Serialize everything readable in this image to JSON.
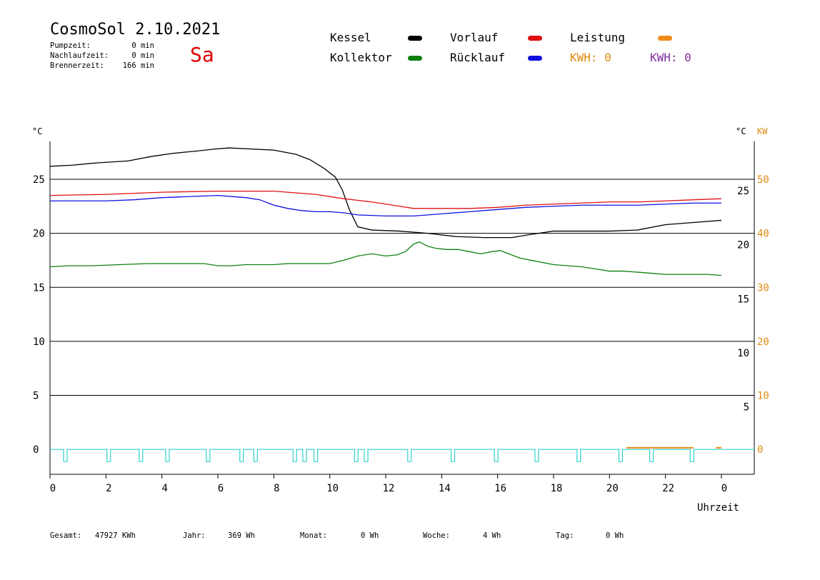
{
  "header": {
    "title": "CosmoSol 2.10.2021",
    "day": "Sa",
    "stats": [
      {
        "label": "Pumpzeit:",
        "value": "0 min"
      },
      {
        "label": "Nachlaufzeit:",
        "value": "0 min"
      },
      {
        "label": "Brennerzeit:",
        "value": "166 min"
      }
    ]
  },
  "legend": {
    "kessel": {
      "label": "Kessel",
      "color": "#000000"
    },
    "vorlauf": {
      "label": "Vorlauf",
      "color": "#e01010"
    },
    "leistung": {
      "label": "Leistung",
      "color": "#f08a1a"
    },
    "kollektor": {
      "label": "Kollektor",
      "color": "#108010"
    },
    "ruecklauf": {
      "label": "Rücklauf",
      "color": "#1010e0"
    },
    "kwh1": {
      "label": "KWH: 0",
      "color": "#e08a10"
    },
    "kwh2": {
      "label": "KWH: 0",
      "color": "#8030a0"
    }
  },
  "footer": [
    {
      "label": "Gesamt:",
      "value": "47927 KWh"
    },
    {
      "label": "Jahr:",
      "value": "369 Wh"
    },
    {
      "label": "Monat:",
      "value": "0 Wh"
    },
    {
      "label": "Woche:",
      "value": "4 Wh"
    },
    {
      "label": "Tag:",
      "value": "0 Wh"
    }
  ],
  "chart_data": {
    "type": "line",
    "xlabel": "Uhrzeit",
    "left_unit": "°C",
    "right_unit": "°C",
    "right_unit2": "KW",
    "x_ticks": [
      "0",
      "2",
      "4",
      "6",
      "8",
      "10",
      "12",
      "14",
      "16",
      "18",
      "20",
      "22",
      "0"
    ],
    "xlim": [
      0,
      24
    ],
    "ylim": [
      -2.3,
      28.5
    ],
    "y_ticks_left": [
      0,
      5,
      10,
      15,
      20,
      25
    ],
    "y_ticks_right_temp": [
      5,
      10,
      15,
      20,
      25
    ],
    "y_ticks_right_kw": [
      0,
      10,
      20,
      30,
      40,
      50
    ],
    "grid": "horizontal",
    "series": [
      {
        "name": "Kessel",
        "color": "#000000",
        "x": [
          0,
          0.8,
          1.6,
          2.8,
          3.6,
          4.4,
          5.2,
          5.9,
          6.4,
          7.2,
          8.0,
          8.8,
          9.3,
          9.8,
          10.2,
          10.45,
          10.7,
          11.0,
          11.5,
          12.5,
          13.5,
          14.5,
          15.5,
          16.5,
          17.2,
          18.0,
          19.0,
          20.0,
          21.0,
          22.0,
          23.0,
          24.0
        ],
        "y": [
          26.2,
          26.3,
          26.5,
          26.7,
          27.1,
          27.4,
          27.6,
          27.8,
          27.9,
          27.8,
          27.7,
          27.3,
          26.8,
          26.0,
          25.2,
          24.0,
          22.2,
          20.6,
          20.3,
          20.2,
          20.0,
          19.7,
          19.6,
          19.6,
          19.9,
          20.2,
          20.2,
          20.2,
          20.3,
          20.8,
          21.0,
          21.2
        ]
      },
      {
        "name": "Vorlauf",
        "color": "#e01010",
        "x": [
          0,
          2,
          4,
          6,
          8,
          9.5,
          10.5,
          11.5,
          12.5,
          13,
          14,
          15,
          16,
          17,
          18,
          19,
          20,
          21,
          22,
          23,
          24
        ],
        "y": [
          23.5,
          23.6,
          23.8,
          23.9,
          23.9,
          23.6,
          23.2,
          22.9,
          22.5,
          22.3,
          22.3,
          22.3,
          22.4,
          22.6,
          22.7,
          22.8,
          22.9,
          22.9,
          23.0,
          23.1,
          23.2
        ]
      },
      {
        "name": "Rücklauf",
        "color": "#1010e0",
        "x": [
          0,
          1,
          2,
          3,
          4,
          5,
          6,
          7,
          7.5,
          8,
          8.5,
          9,
          9.5,
          10,
          10.5,
          11,
          12,
          13,
          14,
          15,
          16,
          17,
          18,
          19,
          20,
          21,
          22,
          23,
          24
        ],
        "y": [
          23.0,
          23.0,
          23.0,
          23.1,
          23.3,
          23.4,
          23.5,
          23.3,
          23.1,
          22.6,
          22.3,
          22.1,
          22.0,
          22.0,
          21.9,
          21.7,
          21.6,
          21.6,
          21.8,
          22.0,
          22.2,
          22.4,
          22.5,
          22.6,
          22.6,
          22.6,
          22.7,
          22.8,
          22.8
        ]
      },
      {
        "name": "Kollektor",
        "color": "#108010",
        "x": [
          0,
          0.7,
          1.5,
          2.5,
          3.5,
          4.5,
          5.5,
          6.0,
          6.5,
          7.0,
          7.5,
          8.0,
          8.5,
          9.0,
          9.5,
          10.0,
          10.5,
          11.0,
          11.5,
          12.0,
          12.4,
          12.7,
          13.0,
          13.2,
          13.5,
          13.8,
          14.2,
          14.6,
          15.0,
          15.4,
          15.8,
          16.1,
          16.4,
          16.8,
          17.2,
          17.6,
          18.0,
          18.5,
          19.0,
          19.5,
          20.0,
          20.5,
          21.0,
          21.5,
          22.0,
          22.5,
          23.0,
          23.5,
          24.0
        ],
        "y": [
          16.9,
          17.0,
          17.0,
          17.1,
          17.2,
          17.2,
          17.2,
          17.0,
          17.0,
          17.1,
          17.1,
          17.1,
          17.2,
          17.2,
          17.2,
          17.2,
          17.5,
          17.9,
          18.1,
          17.9,
          18.0,
          18.3,
          19.0,
          19.2,
          18.8,
          18.6,
          18.5,
          18.5,
          18.3,
          18.1,
          18.3,
          18.4,
          18.1,
          17.7,
          17.5,
          17.3,
          17.1,
          17.0,
          16.9,
          16.7,
          16.5,
          16.5,
          16.4,
          16.3,
          16.2,
          16.2,
          16.2,
          16.2,
          16.1
        ]
      }
    ],
    "pump_pulses_x": [
      0.55,
      2.1,
      3.25,
      4.2,
      5.65,
      6.85,
      7.35,
      8.75,
      9.1,
      9.5,
      10.95,
      11.3,
      12.85,
      14.4,
      15.95,
      17.4,
      18.9,
      20.4,
      21.5,
      22.95
    ],
    "pump_color": "#30d0d0",
    "leistung_segments": [
      [
        20.6,
        23.0
      ],
      [
        23.8,
        24.0
      ]
    ],
    "leistung_level_kw": 0.3
  }
}
